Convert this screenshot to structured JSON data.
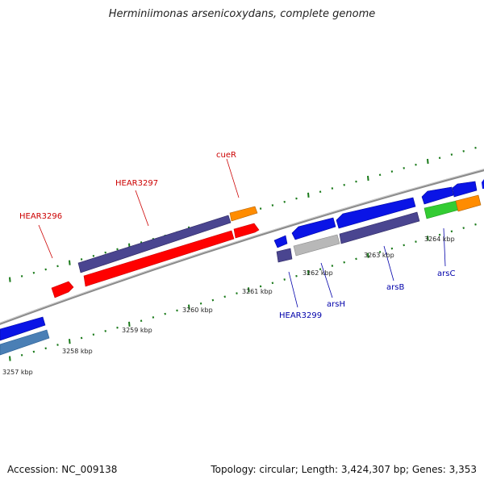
{
  "title": "Herminiimonas arsenicoxydans, complete genome",
  "accession_text": "Accession: NC_009138",
  "topology_text": "Topology: circular; Length: 3,424,307 bp; Genes: 3,353",
  "colors": {
    "backbone": "#8a8a8a",
    "tick": "#1a7a1a",
    "label_forward": "#cc0000",
    "label_reverse": "#0000aa",
    "gene_red": "#ff0000",
    "gene_darkred": "#c80000",
    "gene_slate": "#4a4590",
    "gene_blue": "#0a14e6",
    "gene_orange": "#ff8c00",
    "gene_gray": "#b8b8b8",
    "gene_green": "#33cc33",
    "gene_steel": "#4a7fb5"
  },
  "scale": {
    "unit": "kbp",
    "ticks": [
      {
        "value": 3257,
        "label": "3257 kbp"
      },
      {
        "value": 3258,
        "label": "3258 kbp"
      },
      {
        "value": 3259,
        "label": "3259 kbp"
      },
      {
        "value": 3260,
        "label": "3260 kbp"
      },
      {
        "value": 3261,
        "label": "3261 kbp"
      },
      {
        "value": 3262,
        "label": "3262 kbp"
      },
      {
        "value": 3263,
        "label": "3263 kbp"
      },
      {
        "value": 3264,
        "label": "3264 kbp"
      }
    ]
  },
  "gene_labels": [
    {
      "text": "HEAR3296",
      "strand": "forward"
    },
    {
      "text": "HEAR3297",
      "strand": "forward"
    },
    {
      "text": "cueR",
      "strand": "forward"
    },
    {
      "text": "HEAR3299",
      "strand": "reverse"
    },
    {
      "text": "arsH",
      "strand": "reverse"
    },
    {
      "text": "arsB",
      "strand": "reverse"
    },
    {
      "text": "arsC",
      "strand": "reverse"
    }
  ]
}
